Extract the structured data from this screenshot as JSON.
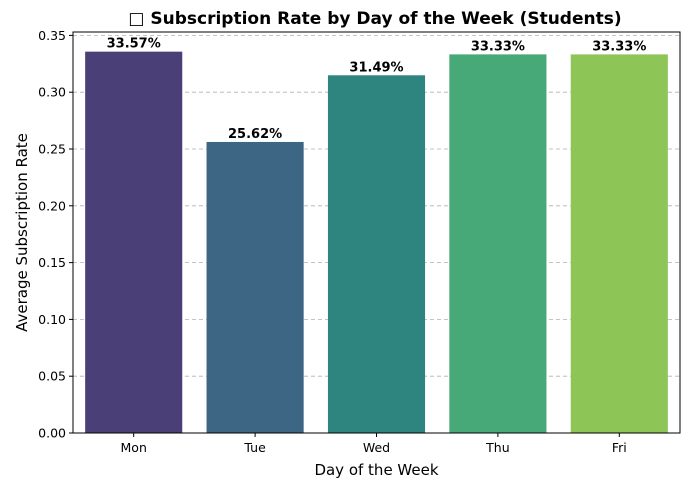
{
  "chart_data": {
    "type": "bar",
    "title": "□ Subscription Rate by Day of the Week (Students)",
    "xlabel": "Day of the Week",
    "ylabel": "Average Subscription Rate",
    "categories": [
      "Mon",
      "Tue",
      "Wed",
      "Thu",
      "Fri"
    ],
    "values": [
      0.3357,
      0.2562,
      0.3149,
      0.3333,
      0.3333
    ],
    "data_labels": [
      "33.57%",
      "25.62%",
      "31.49%",
      "33.33%",
      "33.33%"
    ],
    "colors": [
      "#4b3f78",
      "#3d6584",
      "#2e847e",
      "#47a977",
      "#8dc556"
    ],
    "ylim": [
      0,
      0.353
    ],
    "yticks": [
      0.0,
      0.05,
      0.1,
      0.15,
      0.2,
      0.25,
      0.3,
      0.35
    ],
    "ytick_labels": [
      "0.00",
      "0.05",
      "0.10",
      "0.15",
      "0.20",
      "0.25",
      "0.30",
      "0.35"
    ],
    "grid": "y-dashed",
    "legend": "none"
  }
}
